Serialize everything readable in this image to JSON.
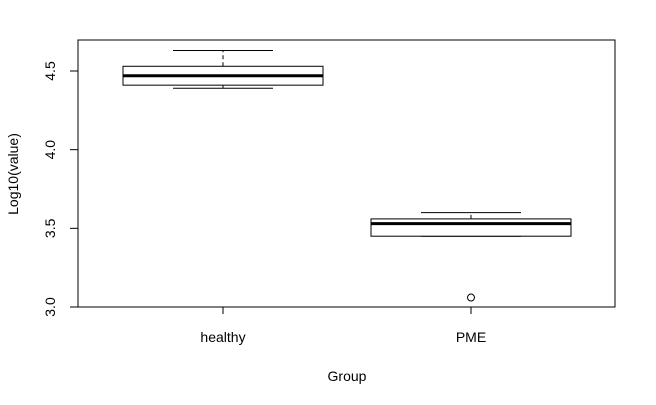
{
  "chart_data": {
    "type": "boxplot",
    "title": "",
    "xlabel": "Group",
    "ylabel": "Log10(value)",
    "ylim": [
      3.0,
      4.7
    ],
    "y_ticks": [
      "3.0",
      "3.5",
      "4.0",
      "4.5"
    ],
    "grid": false,
    "categories": [
      "healthy",
      "PME"
    ],
    "boxes": [
      {
        "category": "healthy",
        "whisker_low": 4.39,
        "q1": 4.41,
        "median": 4.47,
        "q3": 4.53,
        "whisker_high": 4.63,
        "outliers": []
      },
      {
        "category": "PME",
        "whisker_low": 3.45,
        "q1": 3.45,
        "median": 3.53,
        "q3": 3.56,
        "whisker_high": 3.6,
        "outliers": [
          3.06
        ]
      }
    ]
  }
}
